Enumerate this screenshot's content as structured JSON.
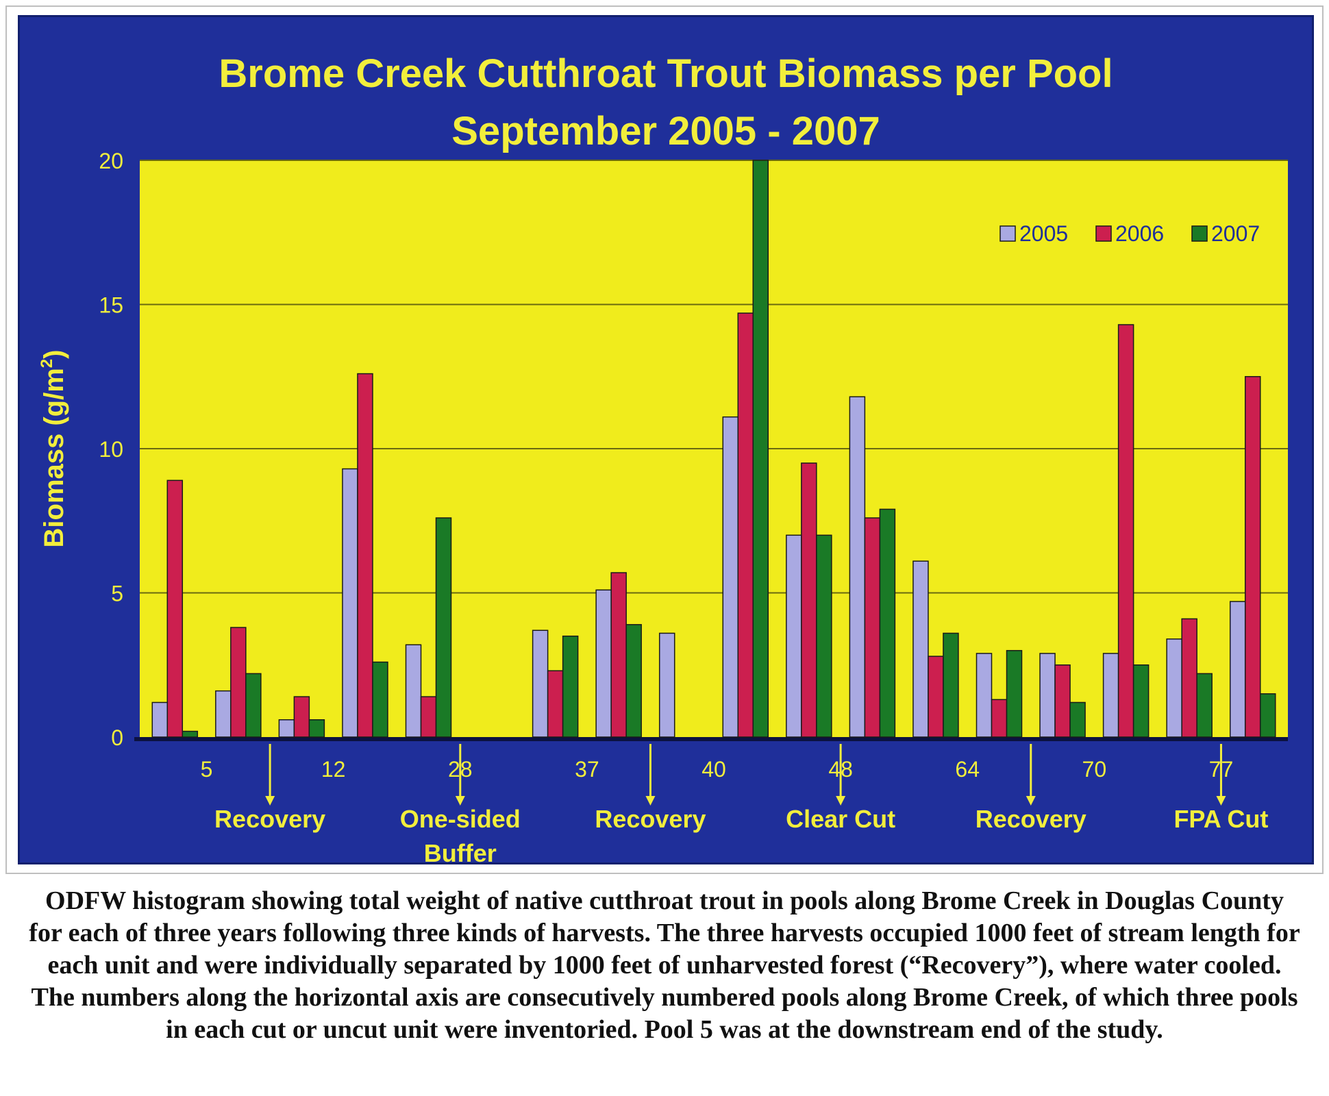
{
  "chart_data": {
    "type": "bar",
    "title_lines": [
      "Brome Creek Cutthroat Trout Biomass per Pool",
      "September 2005 - 2007"
    ],
    "ylabel": "Biomass (g/m",
    "ylabel_sup": "2",
    "ylabel_close": ")",
    "ylim": [
      0,
      20
    ],
    "yticks": [
      "0",
      "5",
      "10",
      "15",
      "20"
    ],
    "grid": true,
    "legend_position": "top-right",
    "x_tick_labels": [
      "5",
      "12",
      "28",
      "37",
      "40",
      "48",
      "64",
      "70",
      "77"
    ],
    "groups": [
      {
        "2005": 1.2,
        "2006": 8.9,
        "2007": 0.2
      },
      {
        "2005": 1.6,
        "2006": 3.8,
        "2007": 2.2
      },
      {
        "2005": 0.6,
        "2006": 1.4,
        "2007": 0.6
      },
      {
        "2005": 9.3,
        "2006": 12.6,
        "2007": 2.6
      },
      {
        "2005": 3.2,
        "2006": 1.4,
        "2007": 7.6
      },
      null,
      {
        "2005": 3.7,
        "2006": 2.3,
        "2007": 3.5
      },
      {
        "2005": 5.1,
        "2006": 5.7,
        "2007": 3.9
      },
      {
        "2005": 3.6,
        "2006": 0,
        "2007": 0
      },
      {
        "2005": 11.1,
        "2006": 14.7,
        "2007": 20.0
      },
      {
        "2005": 7.0,
        "2006": 9.5,
        "2007": 7.0
      },
      {
        "2005": 11.8,
        "2006": 7.6,
        "2007": 7.9
      },
      {
        "2005": 6.1,
        "2006": 2.8,
        "2007": 3.6
      },
      {
        "2005": 2.9,
        "2006": 1.3,
        "2007": 3.0
      },
      {
        "2005": 2.9,
        "2006": 2.5,
        "2007": 1.2
      },
      {
        "2005": 2.9,
        "2006": 14.3,
        "2007": 2.5
      },
      {
        "2005": 3.4,
        "2006": 4.1,
        "2007": 2.2
      },
      {
        "2005": 4.7,
        "2006": 12.5,
        "2007": 1.5
      }
    ],
    "series": [
      {
        "name": "2005",
        "color": "#a9a9e2"
      },
      {
        "name": "2006",
        "color": "#cc1f4f"
      },
      {
        "name": "2007",
        "color": "#1a7a26"
      }
    ],
    "reach_labels": [
      {
        "lines": [
          "Recovery"
        ]
      },
      {
        "lines": [
          "One-sided",
          "Buffer"
        ]
      },
      {
        "lines": [
          "Recovery"
        ]
      },
      {
        "lines": [
          "Clear Cut"
        ]
      },
      {
        "lines": [
          "Recovery"
        ]
      },
      {
        "lines": [
          "FPA Cut"
        ]
      }
    ],
    "colors": {
      "panel": "#1f2f9a",
      "plot_area": "#f0ec1c",
      "text": "#f2ee3c",
      "gridline": "#6a6a10"
    }
  },
  "caption": "ODFW histogram showing total weight of native cutthroat trout in pools along Brome Creek in Douglas County for each of three years following three kinds of harvests. The three harvests occupied 1000 feet of stream length for each unit and were individually separated by 1000 feet of unharvested forest (“Recovery”), where water cooled. The numbers along the horizontal axis are consecutively numbered pools along Brome Creek, of which three pools in each cut or uncut unit were inventoried. Pool 5 was at the downstream end of the study."
}
